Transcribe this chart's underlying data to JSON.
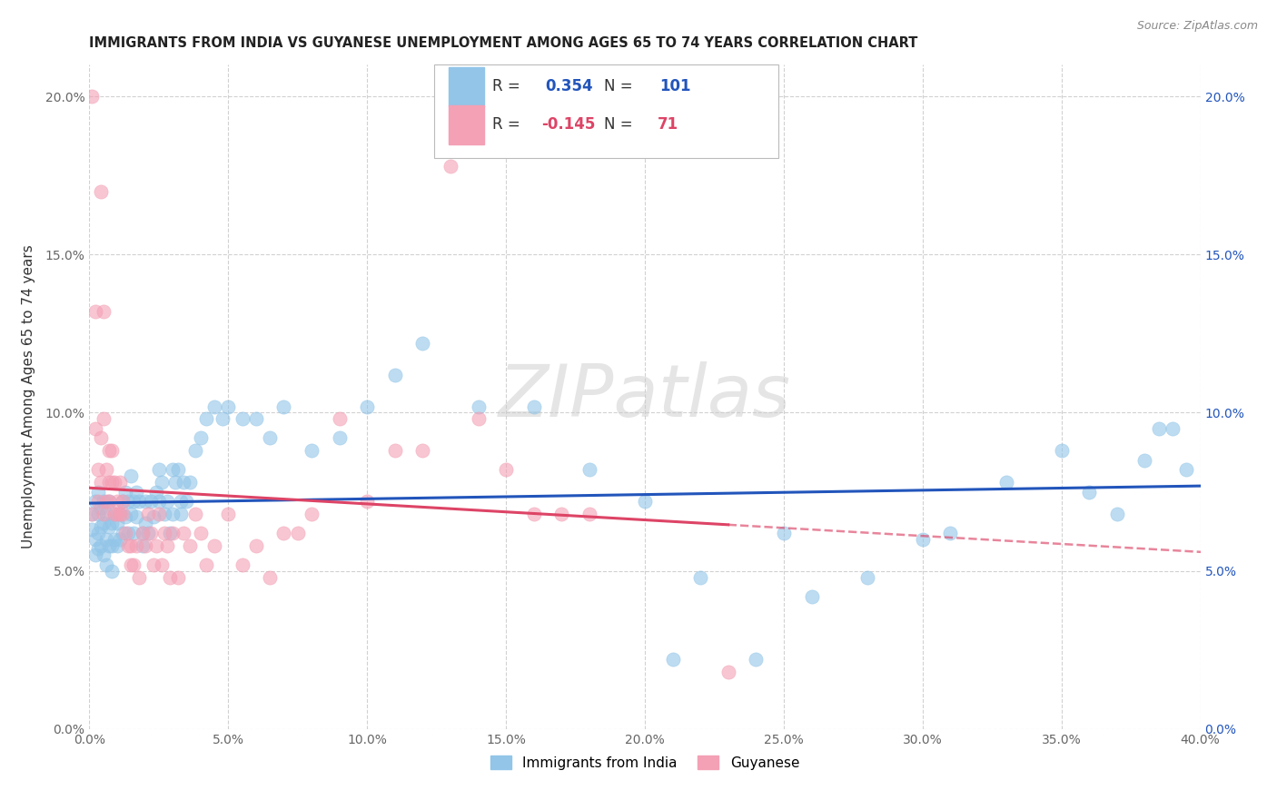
{
  "title": "IMMIGRANTS FROM INDIA VS GUYANESE UNEMPLOYMENT AMONG AGES 65 TO 74 YEARS CORRELATION CHART",
  "source": "Source: ZipAtlas.com",
  "ylabel": "Unemployment Among Ages 65 to 74 years",
  "legend1_label": "Immigrants from India",
  "legend2_label": "Guyanese",
  "r_india": 0.354,
  "n_india": 101,
  "r_guyanese": -0.145,
  "n_guyanese": 71,
  "color_india": "#92C5E8",
  "color_guyanese": "#F4A0B5",
  "line_color_india": "#2255BB",
  "line_color_guyanese": "#DD4466",
  "xlim": [
    0.0,
    0.4
  ],
  "ylim": [
    0.0,
    0.21
  ],
  "xticks": [
    0.0,
    0.05,
    0.1,
    0.15,
    0.2,
    0.25,
    0.3,
    0.35,
    0.4
  ],
  "yticks": [
    0.0,
    0.05,
    0.1,
    0.15,
    0.2
  ],
  "india_x": [
    0.001,
    0.001,
    0.002,
    0.002,
    0.002,
    0.003,
    0.003,
    0.003,
    0.003,
    0.004,
    0.004,
    0.004,
    0.005,
    0.005,
    0.005,
    0.006,
    0.006,
    0.006,
    0.007,
    0.007,
    0.007,
    0.008,
    0.008,
    0.008,
    0.009,
    0.009,
    0.01,
    0.01,
    0.011,
    0.011,
    0.012,
    0.012,
    0.013,
    0.013,
    0.014,
    0.014,
    0.015,
    0.015,
    0.016,
    0.016,
    0.017,
    0.017,
    0.018,
    0.019,
    0.019,
    0.02,
    0.02,
    0.021,
    0.022,
    0.023,
    0.024,
    0.025,
    0.025,
    0.026,
    0.027,
    0.028,
    0.029,
    0.03,
    0.03,
    0.031,
    0.032,
    0.033,
    0.033,
    0.034,
    0.035,
    0.036,
    0.038,
    0.04,
    0.042,
    0.045,
    0.048,
    0.05,
    0.055,
    0.06,
    0.065,
    0.07,
    0.08,
    0.09,
    0.1,
    0.11,
    0.12,
    0.14,
    0.16,
    0.18,
    0.2,
    0.22,
    0.25,
    0.28,
    0.31,
    0.33,
    0.35,
    0.36,
    0.37,
    0.38,
    0.385,
    0.39,
    0.395,
    0.3,
    0.26,
    0.24,
    0.21
  ],
  "india_y": [
    0.068,
    0.063,
    0.072,
    0.06,
    0.055,
    0.075,
    0.068,
    0.062,
    0.057,
    0.07,
    0.064,
    0.058,
    0.072,
    0.065,
    0.055,
    0.068,
    0.06,
    0.052,
    0.072,
    0.064,
    0.058,
    0.065,
    0.058,
    0.05,
    0.068,
    0.06,
    0.065,
    0.058,
    0.068,
    0.06,
    0.072,
    0.062,
    0.075,
    0.067,
    0.072,
    0.062,
    0.08,
    0.068,
    0.072,
    0.062,
    0.075,
    0.067,
    0.072,
    0.062,
    0.058,
    0.072,
    0.065,
    0.062,
    0.072,
    0.067,
    0.075,
    0.082,
    0.072,
    0.078,
    0.068,
    0.072,
    0.062,
    0.082,
    0.068,
    0.078,
    0.082,
    0.072,
    0.068,
    0.078,
    0.072,
    0.078,
    0.088,
    0.092,
    0.098,
    0.102,
    0.098,
    0.102,
    0.098,
    0.098,
    0.092,
    0.102,
    0.088,
    0.092,
    0.102,
    0.112,
    0.122,
    0.102,
    0.102,
    0.082,
    0.072,
    0.048,
    0.062,
    0.048,
    0.062,
    0.078,
    0.088,
    0.075,
    0.068,
    0.085,
    0.095,
    0.095,
    0.082,
    0.06,
    0.042,
    0.022,
    0.022
  ],
  "guyanese_x": [
    0.001,
    0.001,
    0.002,
    0.002,
    0.003,
    0.003,
    0.004,
    0.004,
    0.004,
    0.005,
    0.005,
    0.005,
    0.006,
    0.006,
    0.007,
    0.007,
    0.007,
    0.008,
    0.008,
    0.009,
    0.009,
    0.01,
    0.01,
    0.011,
    0.011,
    0.012,
    0.012,
    0.013,
    0.014,
    0.015,
    0.015,
    0.016,
    0.017,
    0.018,
    0.019,
    0.02,
    0.021,
    0.022,
    0.023,
    0.024,
    0.025,
    0.026,
    0.027,
    0.028,
    0.029,
    0.03,
    0.032,
    0.034,
    0.036,
    0.038,
    0.04,
    0.042,
    0.045,
    0.05,
    0.055,
    0.06,
    0.065,
    0.07,
    0.075,
    0.08,
    0.09,
    0.1,
    0.11,
    0.12,
    0.13,
    0.14,
    0.15,
    0.16,
    0.17,
    0.18,
    0.23
  ],
  "guyanese_y": [
    0.068,
    0.2,
    0.095,
    0.132,
    0.082,
    0.072,
    0.092,
    0.078,
    0.17,
    0.098,
    0.068,
    0.132,
    0.082,
    0.072,
    0.088,
    0.078,
    0.072,
    0.088,
    0.078,
    0.068,
    0.078,
    0.068,
    0.072,
    0.068,
    0.078,
    0.068,
    0.072,
    0.062,
    0.058,
    0.058,
    0.052,
    0.052,
    0.058,
    0.048,
    0.062,
    0.058,
    0.068,
    0.062,
    0.052,
    0.058,
    0.068,
    0.052,
    0.062,
    0.058,
    0.048,
    0.062,
    0.048,
    0.062,
    0.058,
    0.068,
    0.062,
    0.052,
    0.058,
    0.068,
    0.052,
    0.058,
    0.048,
    0.062,
    0.062,
    0.068,
    0.098,
    0.072,
    0.088,
    0.088,
    0.178,
    0.098,
    0.082,
    0.068,
    0.068,
    0.068,
    0.018
  ]
}
